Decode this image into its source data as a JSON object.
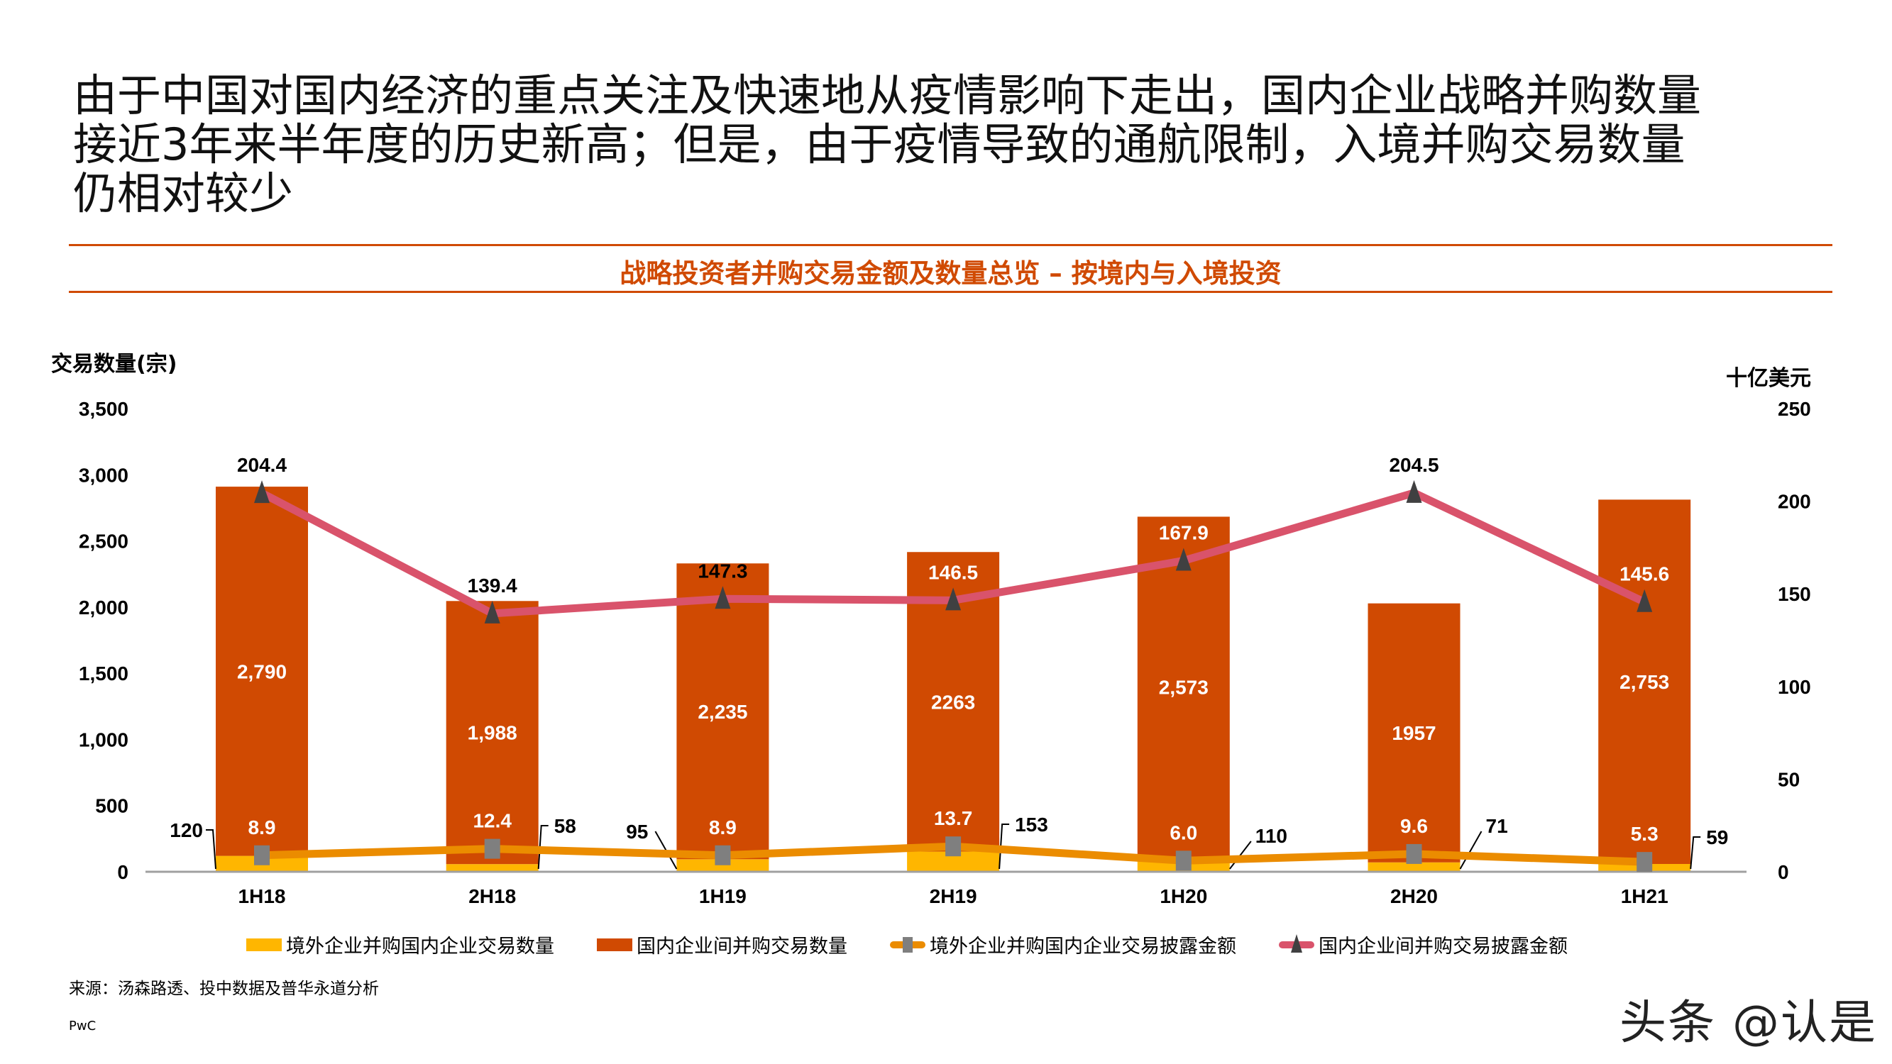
{
  "headline": [
    "由于中国对国内经济的重点关注及快速地从疫情影响下走出，国内企业战略并购数量",
    "接近3年来半年度的历史新高；但是，由于疫情导致的通航限制，入境并购交易数量",
    "仍相对较少"
  ],
  "subtitle": "战略投资者并购交易金额及数量总览 – 按境内与入境投资",
  "source": "来源：汤森路透、投中数据及普华永道分析",
  "footer_brand": "PwC",
  "watermark": "头条 @认是",
  "colors": {
    "accent": "#d04a02",
    "foreign_count": "#ffb600",
    "domestic_count": "#d04a02",
    "foreign_amount": "#eb8c00",
    "foreign_amount_marker": "#7f7f7f",
    "domestic_amount": "#d9536b",
    "domestic_amount_marker": "#404041"
  },
  "chart_data": {
    "type": "bar",
    "stacked": true,
    "title": "战略投资者并购交易金额及数量总览 – 按境内与入境投资",
    "ylabel": "交易数量(宗)",
    "y2label": "十亿美元",
    "ylim": [
      0,
      3500
    ],
    "y2lim": [
      0,
      250
    ],
    "yticks": [
      "0",
      "500",
      "1,000",
      "1,500",
      "2,000",
      "2,500",
      "3,000",
      "3,500"
    ],
    "y2ticks": [
      "0",
      "50",
      "100",
      "150",
      "200",
      "250"
    ],
    "grid": false,
    "legend": "bottom",
    "categories": [
      "1H18",
      "2H18",
      "1H19",
      "2H19",
      "1H20",
      "2H20",
      "1H21"
    ],
    "series": [
      {
        "name": "境外企业并购国内企业交易数量",
        "type": "bar",
        "axis": "left",
        "values": [
          120,
          58,
          95,
          153,
          110,
          71,
          59
        ],
        "labels": [
          "120",
          "58",
          "95",
          "153",
          "110",
          "71",
          "59"
        ]
      },
      {
        "name": "国内企业间并购交易数量",
        "type": "bar",
        "axis": "left",
        "values": [
          2790,
          1988,
          2235,
          2263,
          2573,
          1957,
          2753
        ],
        "labels": [
          "2,790",
          "1,988",
          "2,235",
          "2263",
          "2,573",
          "1957",
          "2,753"
        ]
      },
      {
        "name": "境外企业并购国内企业交易披露金额",
        "type": "line",
        "axis": "right",
        "marker": "square",
        "values": [
          8.9,
          12.4,
          8.9,
          13.7,
          6.0,
          9.6,
          5.3
        ],
        "labels": [
          "8.9",
          "12.4",
          "8.9",
          "13.7",
          "6.0",
          "9.6",
          "5.3"
        ]
      },
      {
        "name": "国内企业间并购交易披露金额",
        "type": "line",
        "axis": "right",
        "marker": "triangle",
        "values": [
          204.4,
          139.4,
          147.3,
          146.5,
          167.9,
          204.5,
          145.6
        ],
        "labels": [
          "204.4",
          "139.4",
          "147.3",
          "146.5",
          "167.9",
          "204.5",
          "145.6"
        ]
      }
    ]
  }
}
